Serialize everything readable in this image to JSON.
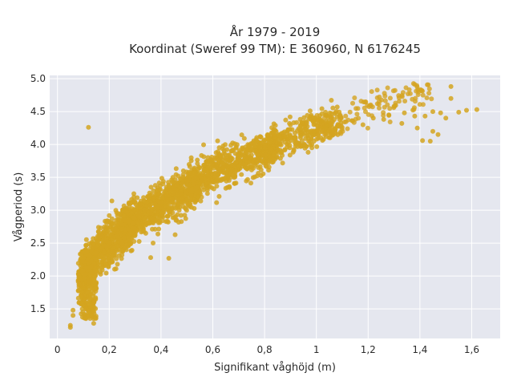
{
  "chart_data": {
    "type": "scatter",
    "title_line1": "År 1979 - 2019",
    "title_line2": "Koordinat (Sweref 99 TM): E 360960, N 6176245",
    "xlabel": "Signifikant våghöjd (m)",
    "ylabel": "Vågperiod (s)",
    "xlim": [
      -0.03,
      1.71
    ],
    "ylim": [
      1.05,
      5.05
    ],
    "x_ticks": [
      0,
      0.2,
      0.4,
      0.6,
      0.8,
      1.0,
      1.2,
      1.4,
      1.6
    ],
    "x_tick_labels": [
      "0",
      "0,2",
      "0,4",
      "0,6",
      "0,8",
      "1",
      "1,2",
      "1,4",
      "1,6"
    ],
    "y_ticks": [
      1.5,
      2.0,
      2.5,
      3.0,
      3.5,
      4.0,
      4.5,
      5.0
    ],
    "y_tick_labels": [
      "1.5",
      "2.0",
      "2.5",
      "3.0",
      "3.5",
      "4.0",
      "4.5",
      "5.0"
    ],
    "grid": true,
    "marker_color": "#d4a420",
    "plot_bg": "#e5e7ef",
    "trend_description": "Dense cloud of points; period rises with wave height roughly as 1.2 + 3.1*sqrt(h), with most points between h=0.1 and h=1.0",
    "highlighted_points": [
      {
        "x": 0.12,
        "y": 4.26
      },
      {
        "x": 1.52,
        "y": 4.88
      },
      {
        "x": 1.52,
        "y": 4.7
      },
      {
        "x": 1.58,
        "y": 4.52
      },
      {
        "x": 1.62,
        "y": 4.53
      },
      {
        "x": 1.3,
        "y": 4.58
      },
      {
        "x": 1.34,
        "y": 4.48
      },
      {
        "x": 1.38,
        "y": 4.43
      },
      {
        "x": 1.42,
        "y": 4.43
      },
      {
        "x": 1.45,
        "y": 4.5
      },
      {
        "x": 1.48,
        "y": 4.48
      },
      {
        "x": 1.5,
        "y": 4.4
      },
      {
        "x": 1.55,
        "y": 4.49
      },
      {
        "x": 1.45,
        "y": 4.2
      },
      {
        "x": 1.47,
        "y": 4.15
      },
      {
        "x": 1.44,
        "y": 4.05
      },
      {
        "x": 1.41,
        "y": 4.06
      },
      {
        "x": 1.39,
        "y": 4.25
      },
      {
        "x": 1.33,
        "y": 4.32
      },
      {
        "x": 1.28,
        "y": 4.45
      },
      {
        "x": 1.26,
        "y": 4.38
      },
      {
        "x": 1.22,
        "y": 4.4
      },
      {
        "x": 1.18,
        "y": 4.3
      },
      {
        "x": 1.14,
        "y": 4.36
      },
      {
        "x": 1.02,
        "y": 4.36
      },
      {
        "x": 0.85,
        "y": 3.93
      },
      {
        "x": 0.88,
        "y": 4.03
      },
      {
        "x": 0.05,
        "y": 1.22
      },
      {
        "x": 0.05,
        "y": 1.25
      },
      {
        "x": 0.06,
        "y": 1.4
      },
      {
        "x": 0.06,
        "y": 1.48
      },
      {
        "x": 0.14,
        "y": 1.28
      },
      {
        "x": 0.1,
        "y": 2.27
      },
      {
        "x": 0.11,
        "y": 2.47
      },
      {
        "x": 0.43,
        "y": 2.27
      },
      {
        "x": 0.36,
        "y": 2.28
      },
      {
        "x": 0.19,
        "y": 2.8
      },
      {
        "x": 0.2,
        "y": 2.92
      },
      {
        "x": 0.54,
        "y": 3.35
      },
      {
        "x": 0.46,
        "y": 3.38
      }
    ]
  }
}
